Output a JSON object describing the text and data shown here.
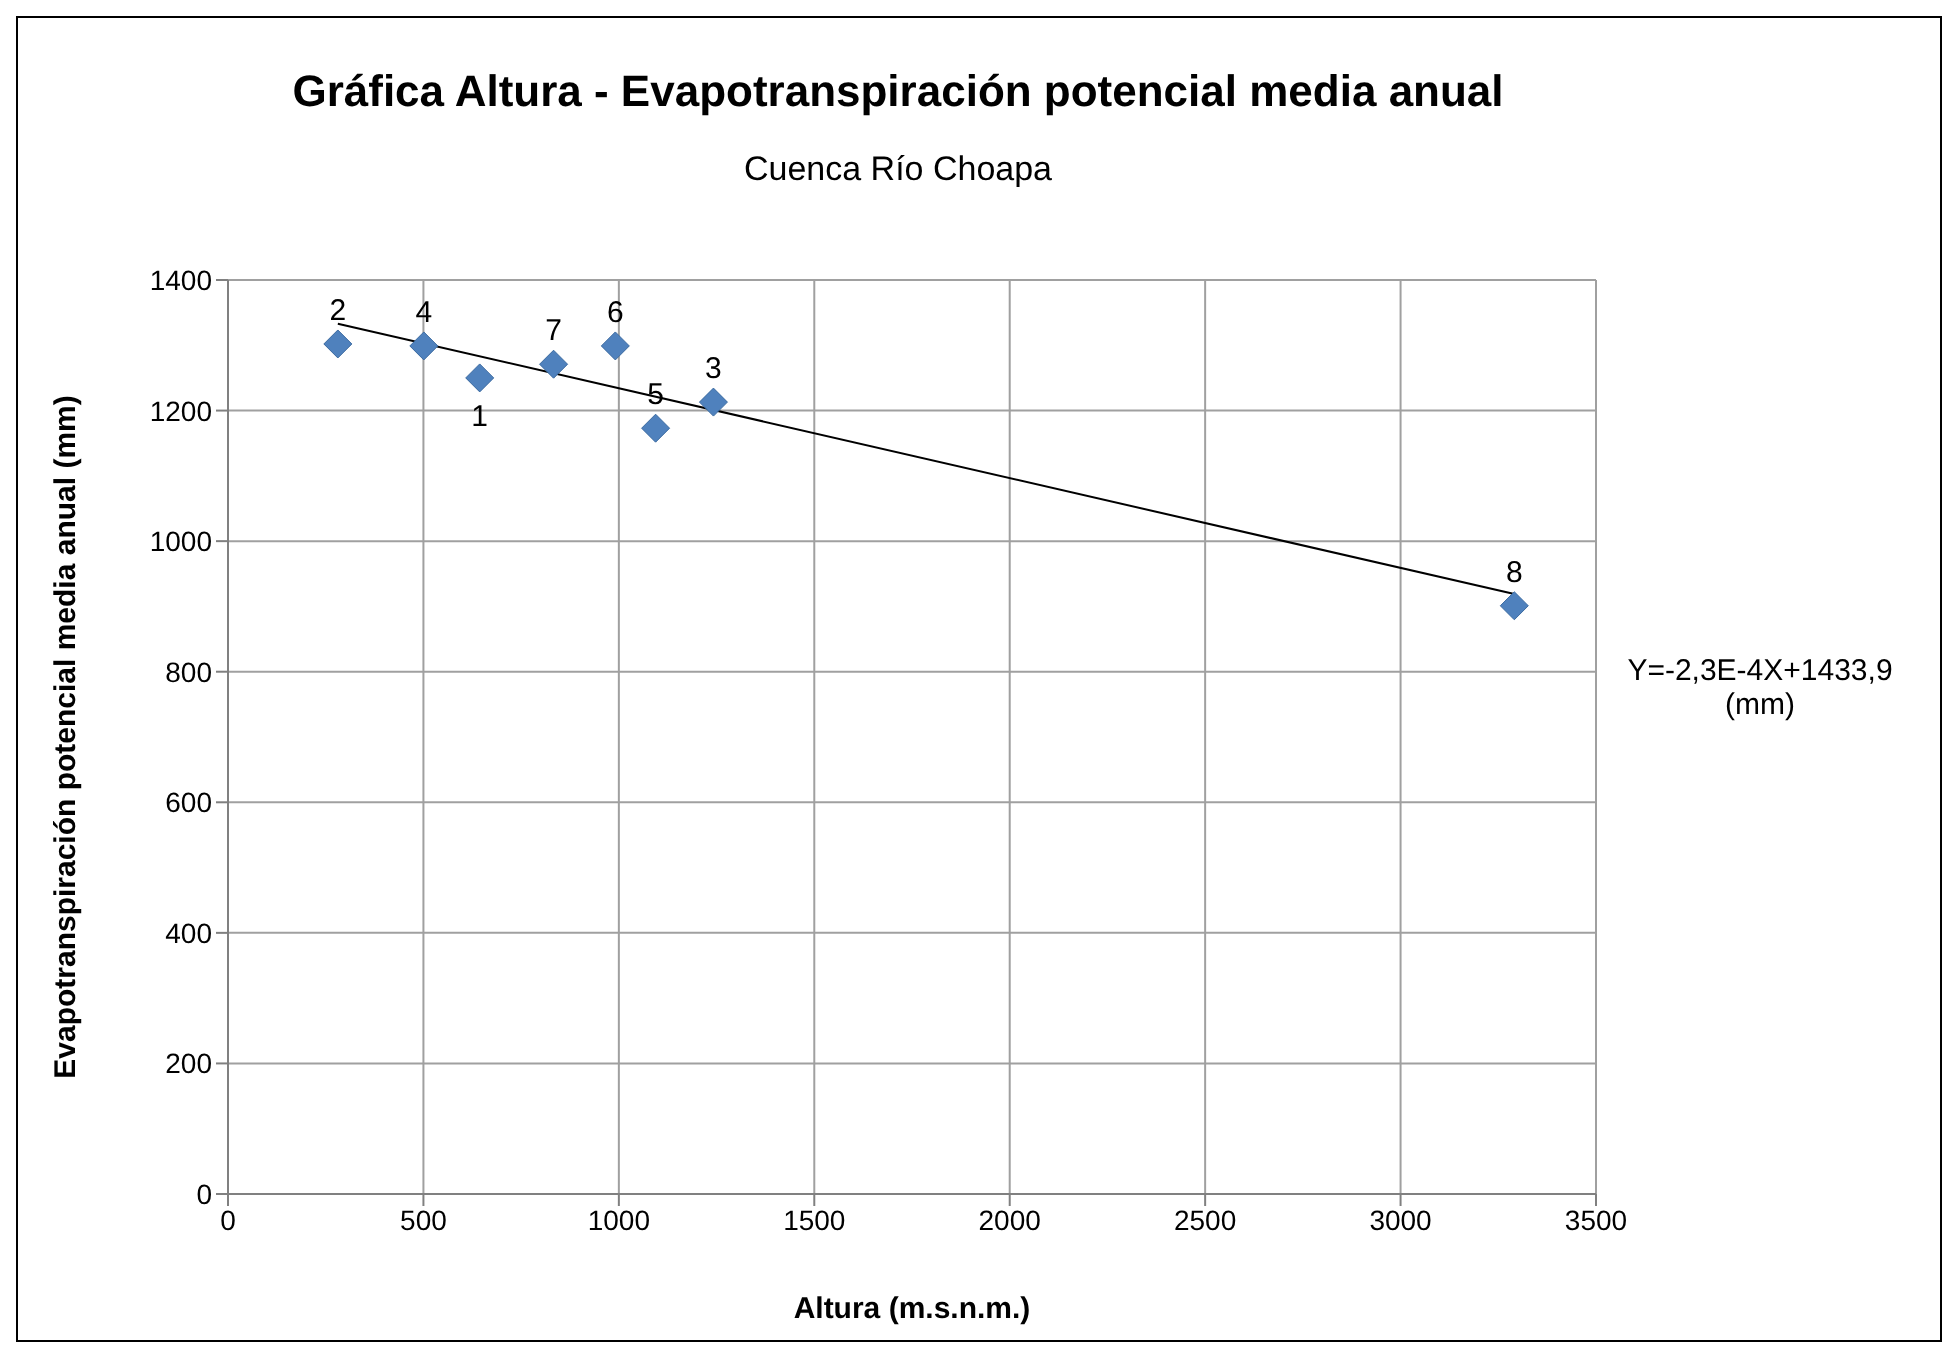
{
  "chart_data": {
    "type": "scatter",
    "title": "Gráfica Altura - Evapotranspiración potencial media anual",
    "subtitle": "Cuenca Río Choapa",
    "xlabel": "Altura  (m.s.n.m.)",
    "ylabel": "Evapotranspiración potencial media anual (mm)",
    "series": [
      {
        "marker": "diamond",
        "color": "#4f81bd",
        "x": [
          281,
          501,
          644,
          833,
          991,
          1094,
          1242,
          3291
        ],
        "values": [
          1302,
          1299,
          1250,
          1271,
          1299,
          1173,
          1213,
          901
        ]
      },
      {
        "type": "line",
        "marker": "none",
        "color": "#000000",
        "x": [
          281,
          3291
        ],
        "values": [
          1333,
          919
        ]
      }
    ],
    "annotations": [
      {
        "text": "2",
        "x": 281,
        "y": 1302
      },
      {
        "text": "4",
        "x": 501,
        "y": 1299
      },
      {
        "text": "1",
        "x": 644,
        "y": 1250
      },
      {
        "text": "7",
        "x": 833,
        "y": 1271
      },
      {
        "text": "6",
        "x": 991,
        "y": 1299
      },
      {
        "text": "5",
        "x": 1094,
        "y": 1173
      },
      {
        "text": "3",
        "x": 1242,
        "y": 1213
      },
      {
        "text": "8",
        "x": 3291,
        "y": 901
      },
      "Y=-2,3E-4X+1433,9 (mm)"
    ],
    "xlim": [
      0,
      3500
    ],
    "xticks": [
      0,
      500,
      1000,
      1500,
      2000,
      2500,
      3000,
      3500
    ],
    "ylim": [
      0,
      1400
    ],
    "yticks": [
      0,
      200,
      400,
      600,
      800,
      1000,
      1200,
      1400
    ],
    "grid": true
  }
}
